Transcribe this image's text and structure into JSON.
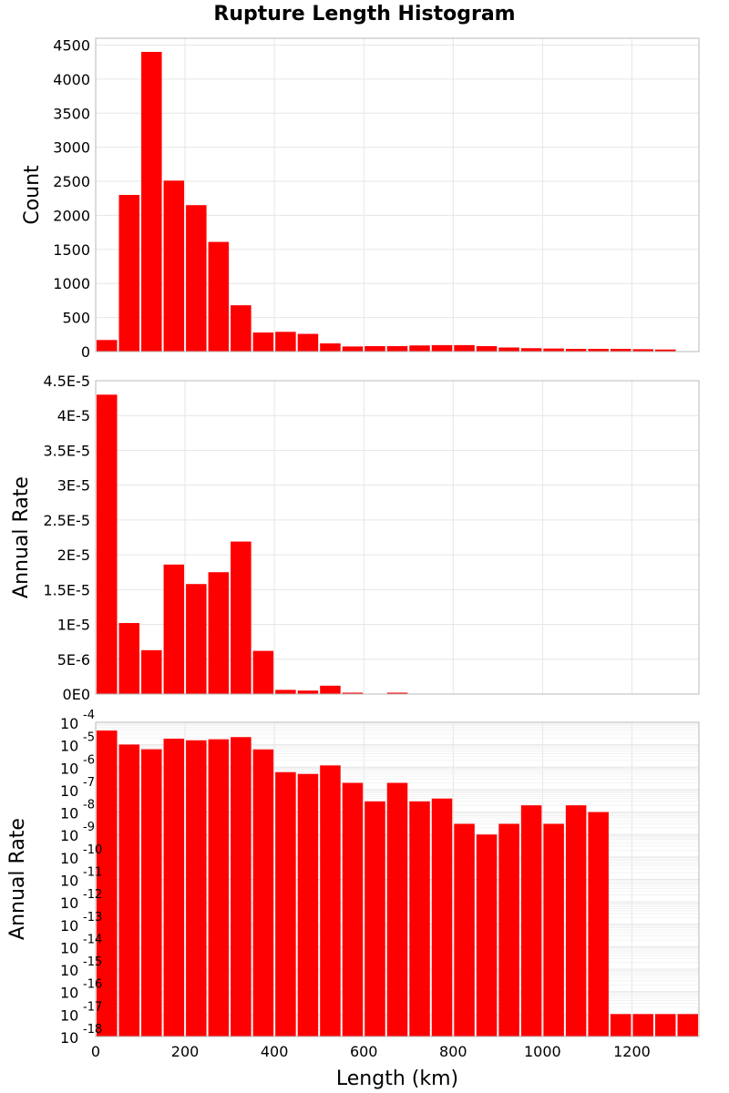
{
  "chart_data": {
    "type": "bar",
    "title": "Rupture Length Histogram",
    "xlabel": "Length (km)",
    "xlim": [
      0,
      1350
    ],
    "x_ticks": [
      "0",
      "200",
      "400",
      "600",
      "800",
      "1000",
      "1200"
    ],
    "x_tick_values": [
      0,
      200,
      400,
      600,
      800,
      1000,
      1200
    ],
    "bin_width": 50,
    "bar_color": "#ff0000",
    "bin_centers": [
      25,
      75,
      125,
      175,
      225,
      275,
      325,
      375,
      425,
      475,
      525,
      575,
      625,
      675,
      725,
      775,
      825,
      875,
      925,
      975,
      1025,
      1075,
      1125,
      1175,
      1225,
      1275,
      1325
    ],
    "panels": [
      {
        "ylabel": "Count",
        "scale": "linear",
        "ylim": [
          0,
          4600
        ],
        "y_ticks": [
          "0",
          "500",
          "1000",
          "1500",
          "2000",
          "2500",
          "3000",
          "3500",
          "4000",
          "4500"
        ],
        "y_tick_values": [
          0,
          500,
          1000,
          1500,
          2000,
          2500,
          3000,
          3500,
          4000,
          4500
        ],
        "values": [
          170,
          2300,
          4400,
          2510,
          2150,
          1610,
          680,
          280,
          290,
          260,
          120,
          75,
          80,
          80,
          90,
          95,
          95,
          80,
          60,
          50,
          45,
          40,
          40,
          40,
          35,
          30,
          0
        ]
      },
      {
        "ylabel": "Annual Rate",
        "scale": "linear",
        "ylim": [
          0,
          4.5e-05
        ],
        "y_ticks": [
          "0E0",
          "5E-6",
          "1E-5",
          "1.5E-5",
          "2E-5",
          "2.5E-5",
          "3E-5",
          "3.5E-5",
          "4E-5",
          "4.5E-5"
        ],
        "y_tick_values": [
          0,
          5e-06,
          1e-05,
          1.5e-05,
          2e-05,
          2.5e-05,
          3e-05,
          3.5e-05,
          4e-05,
          4.5e-05
        ],
        "values": [
          4.3e-05,
          1.02e-05,
          6.3e-06,
          1.86e-05,
          1.58e-05,
          1.75e-05,
          2.19e-05,
          6.2e-06,
          6e-07,
          5e-07,
          1.2e-06,
          2e-07,
          3e-08,
          2e-07,
          3e-08,
          4e-08,
          3e-09,
          1e-09,
          3e-09,
          2e-08,
          3e-09,
          2e-08,
          1e-08,
          1e-17,
          1e-17,
          1e-17,
          1e-17
        ]
      },
      {
        "ylabel": "Annual Rate",
        "scale": "log",
        "ylim_exponents": [
          -18,
          -4
        ],
        "y_tick_base": "10",
        "y_tick_exponents": [
          "-18",
          "-17",
          "-16",
          "-15",
          "-14",
          "-13",
          "-12",
          "-11",
          "-10",
          "-9",
          "-8",
          "-7",
          "-6",
          "-5",
          "-4"
        ],
        "values": [
          4.3e-05,
          1.02e-05,
          6.3e-06,
          1.86e-05,
          1.58e-05,
          1.75e-05,
          2.19e-05,
          6.2e-06,
          6e-07,
          5e-07,
          1.2e-06,
          2e-07,
          3e-08,
          2e-07,
          3e-08,
          4e-08,
          3e-09,
          1e-09,
          3e-09,
          2e-08,
          3e-09,
          2e-08,
          1e-08,
          1e-17,
          1e-17,
          1e-17,
          1e-17
        ]
      }
    ]
  }
}
